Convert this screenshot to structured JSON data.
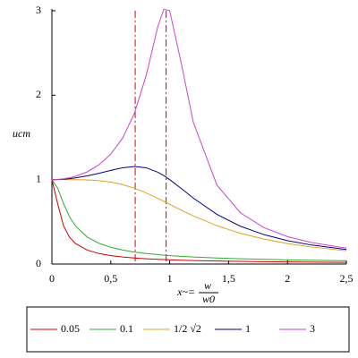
{
  "chart_data": {
    "type": "line",
    "y_label": "ucm",
    "x_label": {
      "prefix": "x~=",
      "numerator": "w",
      "denominator": "w0"
    },
    "x": [
      0,
      0.05,
      0.1,
      0.15,
      0.2,
      0.3,
      0.4,
      0.5,
      0.6,
      0.7,
      0.8,
      0.9,
      0.95,
      1,
      1.1,
      1.2,
      1.4,
      1.6,
      1.8,
      2,
      2.2,
      2.5
    ],
    "series": [
      {
        "name": "0.05",
        "color": "#cc0000",
        "values": [
          1,
          0.708,
          0.448,
          0.317,
          0.243,
          0.165,
          0.124,
          0.0997,
          0.0832,
          0.0714,
          0.0625,
          0.0556,
          0.0526,
          0.05,
          0.0455,
          0.0417,
          0.0357,
          0.0312,
          0.0277,
          0.0249,
          0.0226,
          0.0199
        ]
      },
      {
        "name": "0.1",
        "color": "#33aa33",
        "values": [
          1,
          0.896,
          0.711,
          0.559,
          0.451,
          0.319,
          0.245,
          0.198,
          0.166,
          0.142,
          0.125,
          0.111,
          0.105,
          0.1,
          0.0909,
          0.0833,
          0.0713,
          0.0622,
          0.0551,
          0.0494,
          0.0448,
          0.0391
        ]
      },
      {
        "name": "1/2 √2",
        "color": "#e0a020",
        "values": [
          1,
          1,
          1,
          1,
          0.999,
          0.996,
          0.987,
          0.97,
          0.941,
          0.898,
          0.842,
          0.777,
          0.742,
          0.707,
          0.637,
          0.57,
          0.454,
          0.364,
          0.295,
          0.243,
          0.202,
          0.158
        ]
      },
      {
        "name": "1",
        "color": "#000080",
        "values": [
          1,
          1.001,
          1.005,
          1.011,
          1.02,
          1.044,
          1.075,
          1.109,
          1.14,
          1.155,
          1.14,
          1.087,
          1.047,
          1,
          0.893,
          0.782,
          0.589,
          0.448,
          0.348,
          0.277,
          0.226,
          0.172
        ]
      },
      {
        "name": "3",
        "color": "#cc44cc",
        "values": [
          1,
          1.002,
          1.01,
          1.022,
          1.039,
          1.092,
          1.176,
          1.302,
          1.491,
          1.783,
          2.232,
          2.816,
          3.018,
          3,
          2.367,
          1.682,
          0.937,
          0.607,
          0.431,
          0.325,
          0.256,
          0.188
        ]
      }
    ],
    "vlines": [
      0.707,
      0.97
    ],
    "vline_color": "#cc0000",
    "xlim": [
      0,
      2.5
    ],
    "ylim": [
      0,
      3
    ],
    "xticks": [
      0,
      {
        "value": 0.5,
        "label": "0,5"
      },
      1,
      {
        "value": 1.5,
        "label": "1,5"
      },
      2,
      {
        "value": 2.5,
        "label": "2,5"
      }
    ],
    "yticks": [
      0,
      1,
      2,
      3
    ]
  }
}
